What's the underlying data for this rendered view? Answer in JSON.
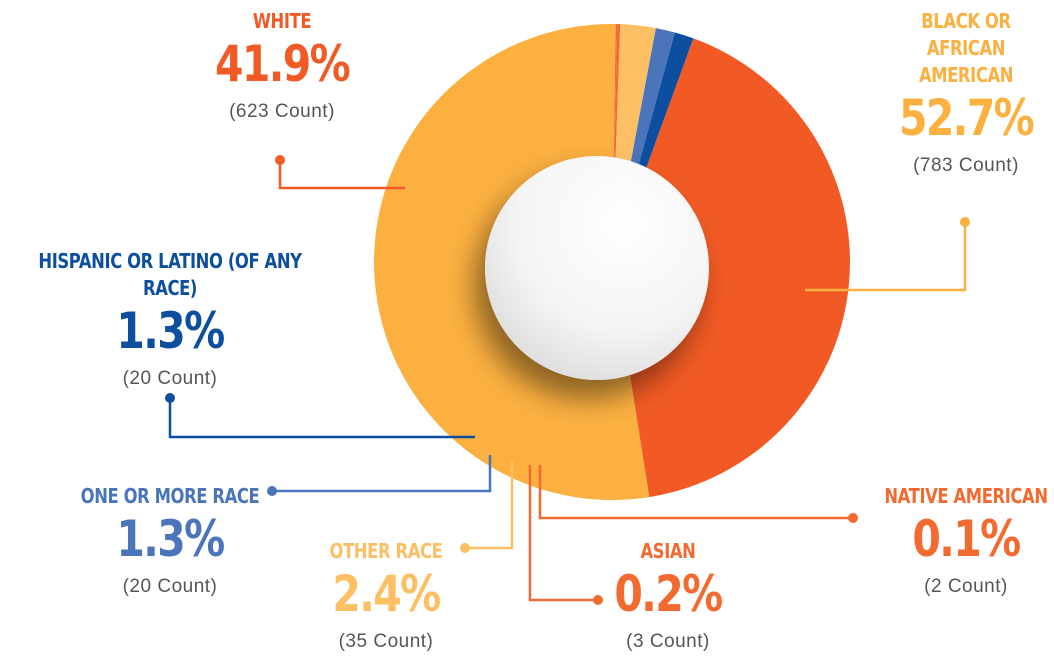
{
  "chart_data": {
    "type": "pie",
    "categories": [
      "WHITE",
      "BLACK OR AFRICAN AMERICAN",
      "NATIVE AMERICAN",
      "ASIAN",
      "OTHER RACE",
      "ONE OR MORE RACE",
      "HISPANIC OR LATINO (OF ANY RACE)"
    ],
    "values": [
      41.9,
      52.7,
      0.1,
      0.2,
      2.4,
      1.3,
      1.3
    ],
    "value_labels": [
      "41.9%",
      "52.7%",
      "0.1%",
      "0.2%",
      "2.4%",
      "1.3%",
      "1.3%"
    ],
    "count_labels": [
      "(623 Count)",
      "(783 Count)",
      "(2 Count)",
      "(3 Count)",
      "(35 Count)",
      "(20 Count)",
      "(20 Count)"
    ],
    "colors": [
      "#f15a24",
      "#fbb040",
      "#f26a30",
      "#f26a30",
      "#fdbf63",
      "#4a75bb",
      "#0d4f9e"
    ]
  }
}
